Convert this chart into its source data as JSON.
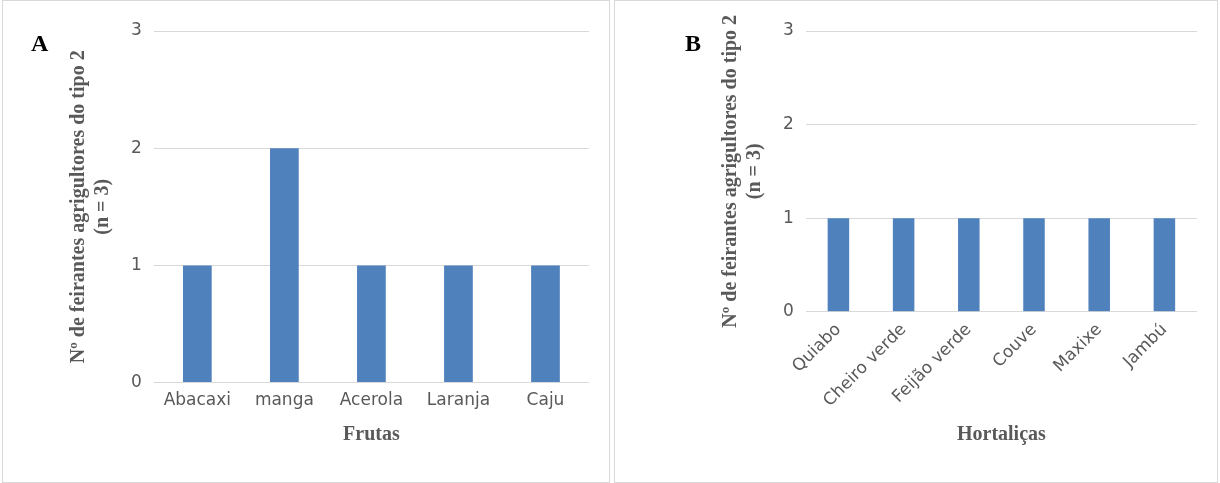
{
  "chart_data": [
    {
      "type": "bar",
      "title": "A",
      "xlabel": "Frutas",
      "ylabel": "Nº de feirantes agrigultores do tipo 2 (n = 3)",
      "categories": [
        "Abacaxi",
        "manga",
        "Acerola",
        "Laranja",
        "Caju"
      ],
      "values": [
        1,
        2,
        1,
        1,
        1
      ],
      "color": "#4f81bd",
      "ylim": [
        0,
        3
      ],
      "yticks": [
        0,
        1,
        2,
        3
      ],
      "grid": "y",
      "legend": false
    },
    {
      "type": "bar",
      "title": "B",
      "xlabel": "Hortaliças",
      "ylabel": "Nº de feirantes agrigultores do tipo 2 (n = 3)",
      "categories": [
        "Quiabo",
        "Cheiro verde",
        "Feijão verde",
        "Couve",
        "Maxixe",
        "Jambú"
      ],
      "values": [
        1,
        1,
        1,
        1,
        1,
        1
      ],
      "color": "#4f81bd",
      "ylim": [
        0,
        3
      ],
      "yticks": [
        0,
        1,
        2,
        3
      ],
      "grid": "y",
      "legend": false
    }
  ]
}
